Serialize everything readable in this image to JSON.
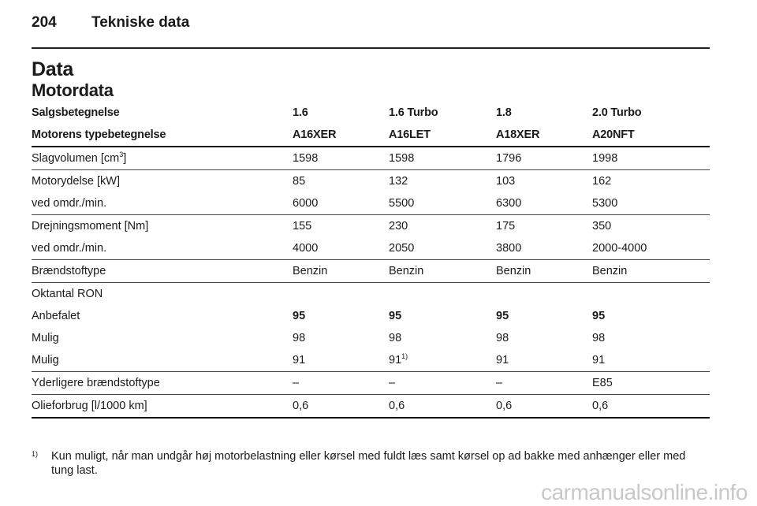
{
  "header": {
    "page_number": "204",
    "chapter": "Tekniske data"
  },
  "section_title": "Data",
  "subsection_title": "Motordata",
  "table": {
    "rows": [
      {
        "label": "Salgsbetegnelse",
        "values": [
          "1.6",
          "1.6 Turbo",
          "1.8",
          "2.0 Turbo"
        ]
      },
      {
        "label": "Motorens typebetegnelse",
        "values": [
          "A16XER",
          "A16LET",
          "A18XER",
          "A20NFT"
        ]
      },
      {
        "label": "Slagvolumen [cm",
        "label_sup": "3",
        "label_suffix": "]",
        "values": [
          "1598",
          "1598",
          "1796",
          "1998"
        ]
      },
      {
        "label": "Motorydelse [kW]",
        "values": [
          "85",
          "132",
          "103",
          "162"
        ]
      },
      {
        "label": "ved omdr./min.",
        "values": [
          "6000",
          "5500",
          "6300",
          "5300"
        ]
      },
      {
        "label": "Drejningsmoment [Nm]",
        "values": [
          "155",
          "230",
          "175",
          "350"
        ]
      },
      {
        "label": "ved omdr./min.",
        "values": [
          "4000",
          "2050",
          "3800",
          "2000-4000"
        ]
      },
      {
        "label": "Brændstoftype",
        "values": [
          "Benzin",
          "Benzin",
          "Benzin",
          "Benzin"
        ]
      },
      {
        "label": "Oktantal RON",
        "values": [
          "",
          "",
          "",
          ""
        ]
      },
      {
        "label": "Anbefalet",
        "values": [
          "95",
          "95",
          "95",
          "95"
        ]
      },
      {
        "label": "Mulig",
        "values": [
          "98",
          "98",
          "98",
          "98"
        ]
      },
      {
        "label": "Mulig",
        "values": [
          "91",
          "91",
          "91",
          "91"
        ],
        "value_sup": "1)"
      },
      {
        "label": "Yderligere brændstoftype",
        "values": [
          "–",
          "–",
          "–",
          "E85"
        ]
      },
      {
        "label": "Olieforbrug [l/1000 km]",
        "values": [
          "0,6",
          "0,6",
          "0,6",
          "0,6"
        ]
      }
    ]
  },
  "footnote": {
    "mark": "1)",
    "text": "Kun muligt, når man undgår høj motorbelastning eller kørsel med fuldt læs samt kørsel op ad bakke med anhænger eller med tung last."
  },
  "watermark": "carmanualsonline.info"
}
